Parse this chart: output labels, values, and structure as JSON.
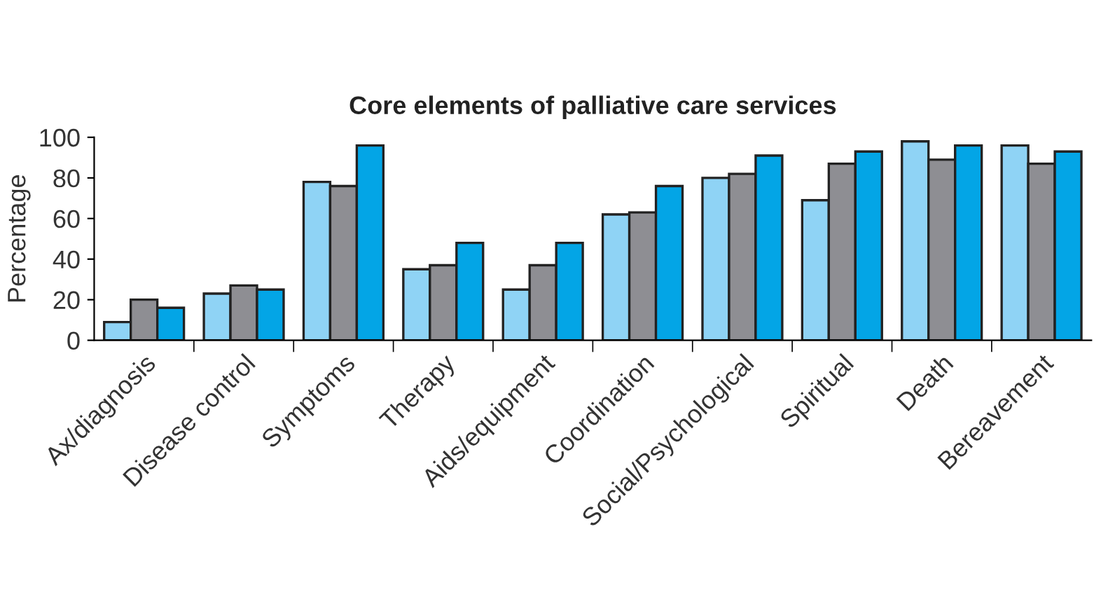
{
  "chart_data": {
    "type": "bar",
    "title": "Core elements of palliative care services",
    "ylabel": "Percentage",
    "categories": [
      "Ax/diagnosis",
      "Disease control",
      "Symptoms",
      "Therapy",
      "Aids/equipment",
      "Coordination",
      "Social/Psychological",
      "Spiritual",
      "Death",
      "Bereavement"
    ],
    "series": [
      {
        "color": "#8fd3f5",
        "values": [
          9,
          23,
          78,
          35,
          25,
          62,
          80,
          69,
          98,
          96
        ]
      },
      {
        "color": "#8e8e93",
        "values": [
          20,
          27,
          76,
          37,
          37,
          63,
          82,
          87,
          89,
          87
        ]
      },
      {
        "color": "#03a5e6",
        "values": [
          16,
          25,
          96,
          48,
          48,
          76,
          91,
          93,
          96,
          93
        ]
      }
    ],
    "ylim": [
      0,
      100
    ],
    "yticks": [
      0,
      20,
      40,
      60,
      80,
      100
    ],
    "grid": false,
    "legend": false
  }
}
